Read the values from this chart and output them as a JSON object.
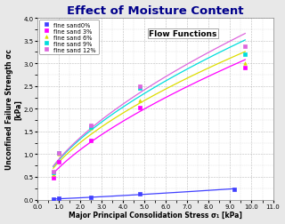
{
  "title": "Effect of Moisture Content",
  "xlabel": "Major Principal Consolidation Stress σ₁ [kPa]",
  "ylabel": "Unconfined Failure Strength σc\n[kPa]",
  "annotation": "Flow Functions",
  "xlim": [
    0.0,
    11.0
  ],
  "ylim": [
    0.0,
    4.0
  ],
  "xticks": [
    0.0,
    1.0,
    2.0,
    3.0,
    4.0,
    5.0,
    6.0,
    7.0,
    8.0,
    9.0,
    10.0,
    11.0
  ],
  "yticks": [
    0.0,
    0.5,
    1.0,
    1.5,
    2.0,
    2.5,
    3.0,
    3.5,
    4.0
  ],
  "series": [
    {
      "label": "fine sand0%",
      "color": "#4040FF",
      "marker": "s",
      "markersize": 2.5,
      "x": [
        0.75,
        1.0,
        2.5,
        4.8,
        9.2
      ],
      "y": [
        0.01,
        0.02,
        0.05,
        0.12,
        0.22
      ]
    },
    {
      "label": "fine sand 3%",
      "color": "#FF00FF",
      "marker": "s",
      "markersize": 2.5,
      "x": [
        0.75,
        1.0,
        2.5,
        4.8,
        9.7
      ],
      "y": [
        0.48,
        0.83,
        1.3,
        2.02,
        2.9
      ]
    },
    {
      "label": "fine sand 6%",
      "color": "#DDDD00",
      "marker": "^",
      "markersize": 2.5,
      "x": [
        0.75,
        1.0,
        2.5,
        4.8,
        9.7
      ],
      "y": [
        0.55,
        1.0,
        1.57,
        2.18,
        3.0
      ]
    },
    {
      "label": "fine sand 9%",
      "color": "#00DDDD",
      "marker": "s",
      "markersize": 2.5,
      "x": [
        0.75,
        1.0,
        2.5,
        4.8,
        9.7
      ],
      "y": [
        0.6,
        1.02,
        1.6,
        2.45,
        3.2
      ]
    },
    {
      "label": "fine sand 12%",
      "color": "#DD66DD",
      "marker": "s",
      "markersize": 2.5,
      "x": [
        0.75,
        1.0,
        2.5,
        4.8,
        9.7
      ],
      "y": [
        0.62,
        1.03,
        1.63,
        2.5,
        3.38
      ]
    }
  ],
  "background_color": "#e8e8e8",
  "plot_bg_color": "#ffffff",
  "title_color": "#00008B",
  "title_fontsize": 9.5,
  "axis_fontsize": 5.5,
  "tick_fontsize": 5.0,
  "legend_fontsize": 4.8,
  "annotation_fontsize": 6.5
}
